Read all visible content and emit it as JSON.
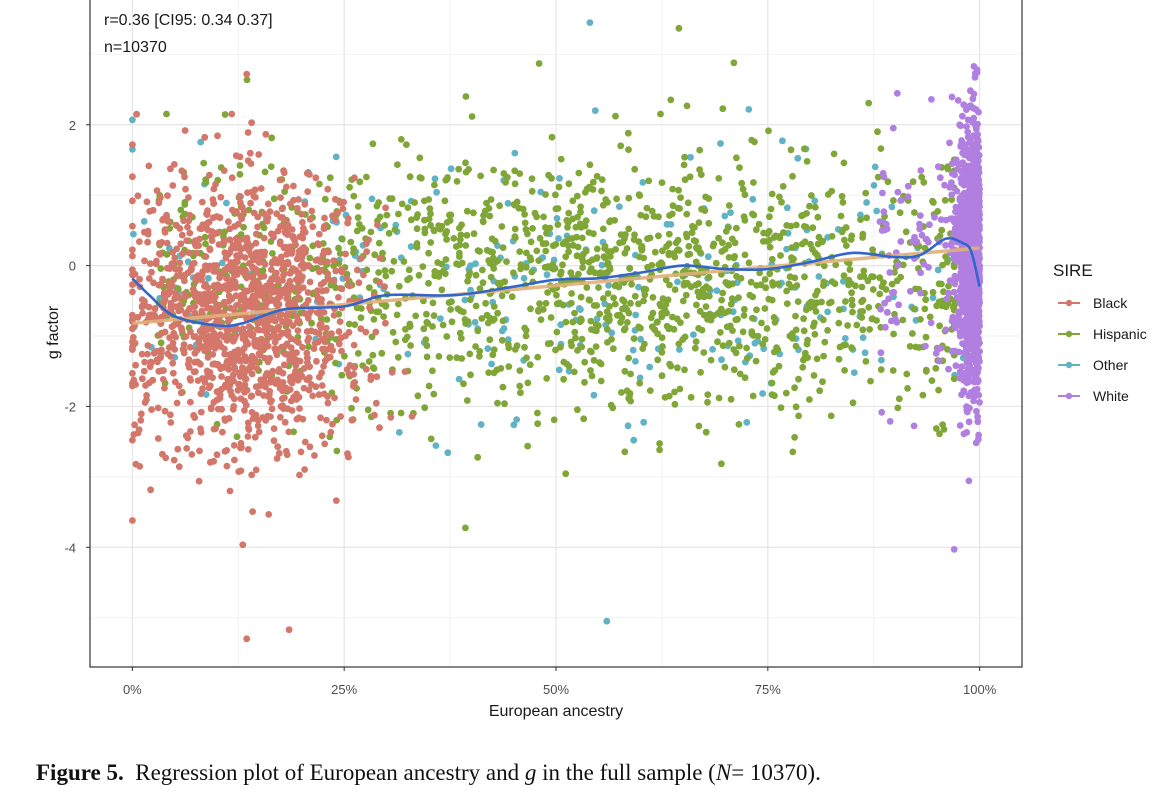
{
  "chart_data": {
    "type": "scatter",
    "title": "",
    "xlabel": "European ancestry",
    "ylabel": "g factor",
    "xlim": [
      -0.05,
      1.05
    ],
    "ylim": [
      -5.7,
      3.8
    ],
    "x_ticks": [
      0,
      0.25,
      0.5,
      0.75,
      1.0
    ],
    "x_tick_labels": [
      "0%",
      "25%",
      "50%",
      "75%",
      "100%"
    ],
    "y_ticks": [
      -4,
      -2,
      0,
      2
    ],
    "y_tick_labels": [
      "-4",
      "-2",
      "0",
      "2"
    ],
    "grid": true,
    "annotations": [
      "r=0.36 [CI95: 0.34 0.37]",
      "n=10370"
    ],
    "legend": {
      "title": "SIRE",
      "placement": "right",
      "entries": [
        {
          "name": "Black",
          "color": "#D4776B"
        },
        {
          "name": "Hispanic",
          "color": "#7FA636"
        },
        {
          "name": "Other",
          "color": "#5FB3C4"
        },
        {
          "name": "White",
          "color": "#B07FE0"
        }
      ]
    },
    "groups": [
      {
        "name": "Black",
        "color": "#D4776B",
        "x_center": 0.14,
        "x_spread": 0.065,
        "x_range": [
          0.0,
          0.33
        ],
        "y_mean": -0.7,
        "y_sd": 0.95,
        "approx_count": 1300
      },
      {
        "name": "Hispanic",
        "color": "#7FA636",
        "x_center": 0.6,
        "x_spread": 0.2,
        "x_range": [
          0.03,
          0.97
        ],
        "y_mean": -0.2,
        "y_sd": 0.9,
        "approx_count": 1500
      },
      {
        "name": "Other",
        "color": "#5FB3C4",
        "x_center": 0.55,
        "x_spread": 0.25,
        "x_range": [
          0.0,
          0.99
        ],
        "y_mean": -0.2,
        "y_sd": 0.95,
        "approx_count": 260
      },
      {
        "name": "White",
        "color": "#B07FE0",
        "x_center": 0.985,
        "x_spread": 0.012,
        "x_range": [
          0.88,
          1.0
        ],
        "y_mean": 0.15,
        "y_sd": 0.9,
        "approx_count": 1500
      }
    ],
    "outliers": [
      {
        "x": 0.54,
        "y": 3.45,
        "group": "Other"
      },
      {
        "x": 0.645,
        "y": 3.37,
        "group": "Hispanic"
      },
      {
        "x": 0.48,
        "y": 2.87,
        "group": "Hispanic"
      },
      {
        "x": 0.56,
        "y": -5.05,
        "group": "Other"
      },
      {
        "x": 0.135,
        "y": -5.3,
        "group": "Black"
      },
      {
        "x": 0.185,
        "y": -5.17,
        "group": "Black"
      },
      {
        "x": 0.0,
        "y": -3.62,
        "group": "Black"
      },
      {
        "x": 0.135,
        "y": 2.72,
        "group": "Black"
      },
      {
        "x": 0.97,
        "y": -4.03,
        "group": "White"
      },
      {
        "x": 0.71,
        "y": 2.88,
        "group": "Hispanic"
      },
      {
        "x": 0.0,
        "y": 2.07,
        "group": "Other"
      },
      {
        "x": 0.005,
        "y": 2.15,
        "group": "Black"
      }
    ],
    "series": [
      {
        "name": "LOESS fit",
        "color": "#3366CC",
        "x": [
          0.0,
          0.02,
          0.05,
          0.1,
          0.13,
          0.18,
          0.25,
          0.3,
          0.38,
          0.45,
          0.5,
          0.55,
          0.6,
          0.65,
          0.7,
          0.75,
          0.8,
          0.85,
          0.9,
          0.93,
          0.96,
          0.98,
          0.99,
          1.0
        ],
        "y": [
          -0.18,
          -0.42,
          -0.72,
          -0.85,
          -0.82,
          -0.62,
          -0.58,
          -0.42,
          -0.42,
          -0.3,
          -0.2,
          -0.18,
          -0.1,
          0.0,
          -0.05,
          -0.05,
          0.05,
          0.18,
          0.12,
          0.15,
          0.38,
          0.32,
          0.2,
          -0.3
        ]
      },
      {
        "name": "Linear fit",
        "color": "#E0B07A",
        "x": [
          0.0,
          1.0
        ],
        "y": [
          -0.82,
          0.25
        ]
      }
    ]
  },
  "caption": {
    "label": "Figure 5.",
    "text_before": "Regression plot of European ancestry and",
    "g": "g",
    "text_mid": "in the full sample (",
    "N": "N",
    "text_after": "= 10370)."
  }
}
